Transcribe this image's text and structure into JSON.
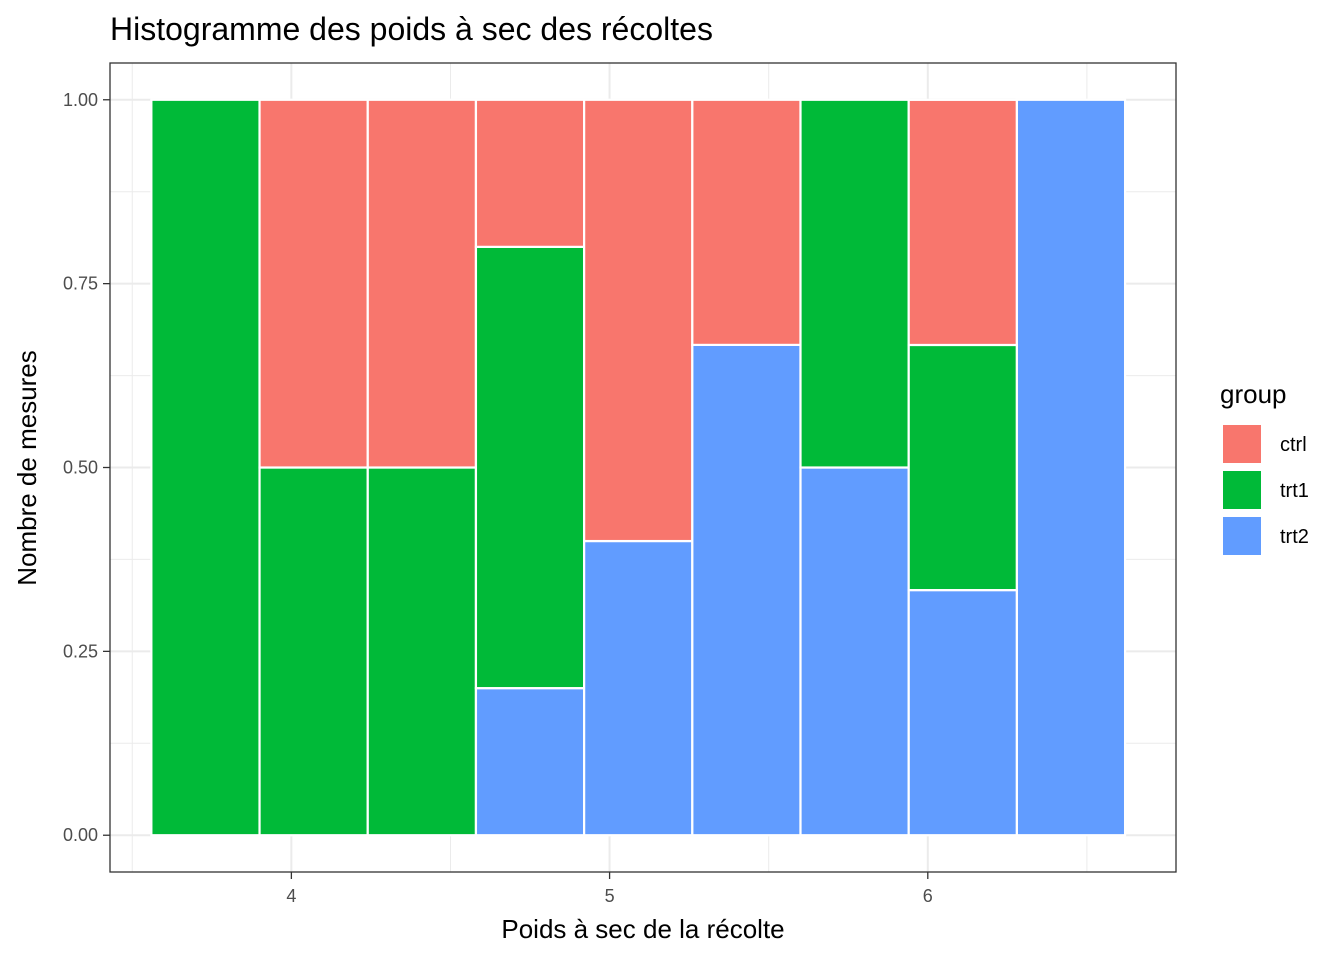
{
  "chart_data": {
    "type": "bar",
    "subtype": "stacked-fill-histogram",
    "title": "Histogramme des poids à sec des récoltes",
    "xlabel": "Poids à sec de la récolte",
    "ylabel": "Nombre de mesures",
    "xlim": [
      3.43,
      6.78
    ],
    "ylim": [
      -0.05,
      1.05
    ],
    "x_ticks": [
      4,
      5,
      6
    ],
    "x_tick_labels": [
      "4",
      "5",
      "6"
    ],
    "y_ticks": [
      0,
      0.25,
      0.5,
      0.75,
      1
    ],
    "y_tick_labels": [
      "0.00",
      "0.25",
      "0.50",
      "0.75",
      "1.00"
    ],
    "bin_width": 0.34,
    "bin_centers": [
      3.73,
      4.07,
      4.41,
      4.75,
      5.09,
      5.43,
      5.77,
      6.11,
      6.45
    ],
    "stack_order": [
      "trt2",
      "trt1",
      "ctrl"
    ],
    "series": [
      {
        "name": "ctrl",
        "color": "#F8766D",
        "values": [
          0,
          0.5,
          0.5,
          0.2,
          0.6,
          0.3333,
          0,
          0.3333,
          0
        ]
      },
      {
        "name": "trt1",
        "color": "#00BA38",
        "values": [
          1,
          0.5,
          0.5,
          0.6,
          0,
          0,
          0.5,
          0.3333,
          0
        ]
      },
      {
        "name": "trt2",
        "color": "#619CFF",
        "values": [
          0,
          0,
          0,
          0.2,
          0.4,
          0.6667,
          0.5,
          0.3333,
          1
        ]
      }
    ],
    "legend": {
      "title": "group",
      "position": "right",
      "labels": [
        "ctrl",
        "trt1",
        "trt2"
      ]
    },
    "grid": true
  }
}
